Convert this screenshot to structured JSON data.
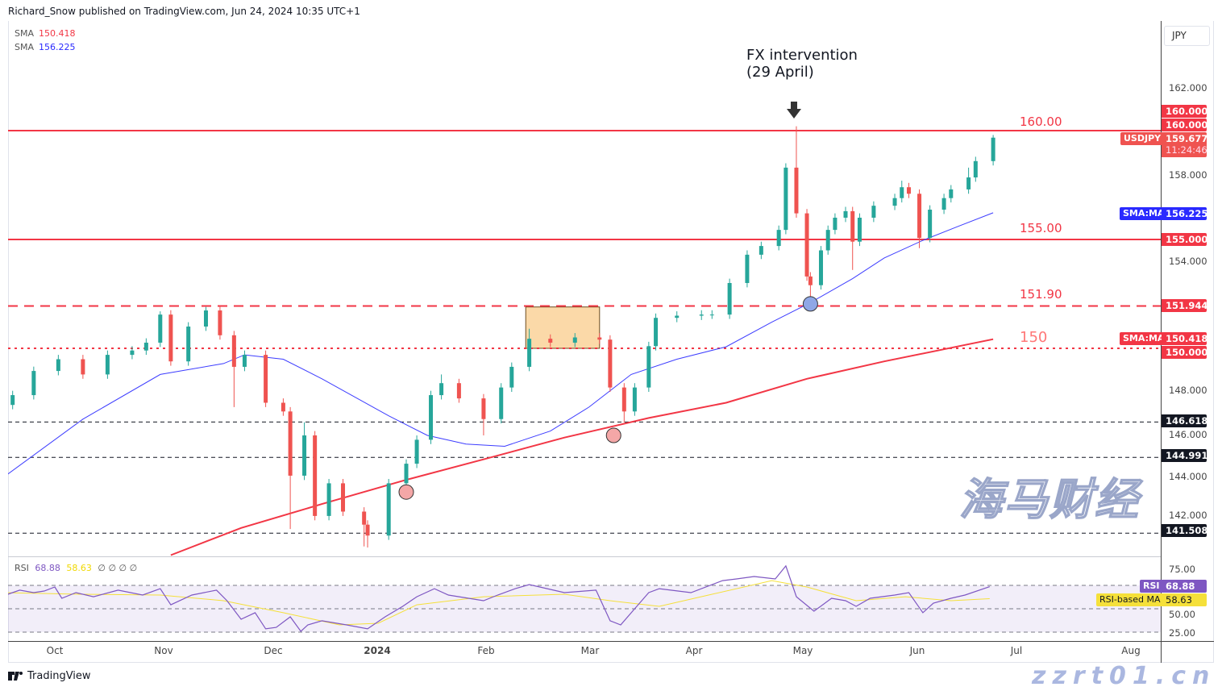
{
  "header": {
    "published": "Richard_Snow published on TradingView.com, Jun 24, 2024 10:35 UTC+1"
  },
  "legend": {
    "sma_long": {
      "label": "SMA",
      "value": "150.418",
      "color": "#f23645"
    },
    "sma_short": {
      "label": "SMA",
      "value": "156.225",
      "color": "#2a2aff"
    }
  },
  "currency_button": "JPY",
  "annotation": {
    "line1": "FX intervention",
    "line2": "(29 April)",
    "icon": "arrow-down-icon"
  },
  "levels": [
    {
      "value": 160.0,
      "style": "solid",
      "color": "#f23645",
      "label": "160.00"
    },
    {
      "value": 155.0,
      "style": "solid",
      "color": "#f23645",
      "label": "155.00"
    },
    {
      "value": 151.944,
      "style": "dashed",
      "color": "#f23645",
      "label": "151.90"
    },
    {
      "value": 150.0,
      "style": "dotted",
      "color": "#f23645",
      "label": "150"
    },
    {
      "value": 146.618,
      "style": "dashed",
      "color": "#131722",
      "label": ""
    },
    {
      "value": 144.991,
      "style": "dashed",
      "color": "#131722",
      "label": ""
    },
    {
      "value": 141.508,
      "style": "dashed",
      "color": "#131722",
      "label": ""
    }
  ],
  "price_tags": {
    "t160a": "160.000",
    "t160b": "160.000",
    "symbol": "USDJPY",
    "last": "159.677",
    "countdown": "11:24:46",
    "sma_short_label": "SMA:MA",
    "sma_short": "156.225",
    "t155": "155.000",
    "t151": "151.944",
    "sma_long_label": "SMA:MA",
    "sma_long": "150.418",
    "t150": "150.000",
    "t146": "146.618",
    "t144": "144.991",
    "t141": "141.508"
  },
  "colors": {
    "up": "#26a69a",
    "down": "#ef5350",
    "sma_short": "#3d3dff",
    "sma_long": "#f23645",
    "rsi": "#7e57c2",
    "rsi_ma": "#f5e03a",
    "box": "#fbd9a8"
  },
  "rsi": {
    "label": "RSI",
    "value": "68.88",
    "ma_value": "58.63",
    "extra": "∅ ∅ ∅ ∅",
    "tag_label": "RSI",
    "ma_tag_label": "RSI-based MA",
    "ticks": [
      "75.00",
      "50.00",
      "25.00"
    ],
    "bands": {
      "upper": 70,
      "middle": 50,
      "lower": 30
    }
  },
  "chart_data": {
    "type": "candlestick",
    "title": "",
    "symbol": "USDJPY",
    "ylim": [
      140.5,
      162.8
    ],
    "y_ticks": [
      "162.000",
      "158.000",
      "154.000",
      "148.000",
      "146.000",
      "144.000",
      "142.000"
    ],
    "x_ticks": [
      "Oct",
      "Nov",
      "Dec",
      "2024",
      "Feb",
      "Mar",
      "Apr",
      "May",
      "Jun",
      "Jul",
      "Aug"
    ],
    "first_open": 147.4,
    "candles": [
      {
        "d": "2023-09-19",
        "c": 147.85
      },
      {
        "d": "2023-09-25",
        "c": 148.96
      },
      {
        "d": "2023-10-02",
        "c": 149.5
      },
      {
        "d": "2023-10-09",
        "c": 148.8
      },
      {
        "d": "2023-10-16",
        "c": 149.7
      },
      {
        "d": "2023-10-23",
        "c": 149.9
      },
      {
        "d": "2023-10-27",
        "c": 150.26
      },
      {
        "d": "2023-10-31",
        "c": 151.55,
        "h": 151.7
      },
      {
        "d": "2023-11-03",
        "c": 149.4,
        "l": 149.2
      },
      {
        "d": "2023-11-08",
        "c": 151.0
      },
      {
        "d": "2023-11-13",
        "c": 151.74,
        "h": 151.9
      },
      {
        "d": "2023-11-17",
        "c": 150.6
      },
      {
        "d": "2023-11-21",
        "c": 149.15,
        "l": 147.3
      },
      {
        "d": "2023-11-24",
        "c": 149.7
      },
      {
        "d": "2023-11-30",
        "c": 147.5
      },
      {
        "d": "2023-12-05",
        "c": 147.1
      },
      {
        "d": "2023-12-07",
        "c": 144.15,
        "l": 141.7
      },
      {
        "d": "2023-12-11",
        "c": 146.0,
        "h": 146.6
      },
      {
        "d": "2023-12-14",
        "c": 142.3
      },
      {
        "d": "2023-12-18",
        "c": 143.8
      },
      {
        "d": "2023-12-22",
        "c": 142.5
      },
      {
        "d": "2023-12-28",
        "c": 141.9,
        "l": 140.9
      },
      {
        "d": "2023-12-29",
        "c": 141.4,
        "l": 140.85
      },
      {
        "d": "2024-01-04",
        "c": 143.8
      },
      {
        "d": "2024-01-09",
        "c": 144.7
      },
      {
        "d": "2024-01-12",
        "c": 145.8
      },
      {
        "d": "2024-01-16",
        "c": 147.85
      },
      {
        "d": "2024-01-19",
        "c": 148.4,
        "h": 148.8
      },
      {
        "d": "2024-01-24",
        "c": 147.7
      },
      {
        "d": "2024-01-31",
        "c": 146.75,
        "l": 146.0
      },
      {
        "d": "2024-02-05",
        "c": 148.2
      },
      {
        "d": "2024-02-08",
        "c": 149.15
      },
      {
        "d": "2024-02-13",
        "c": 150.44,
        "h": 150.9
      },
      {
        "d": "2024-02-19",
        "c": 150.26
      },
      {
        "d": "2024-02-26",
        "c": 150.5
      },
      {
        "d": "2024-03-04",
        "c": 150.4
      },
      {
        "d": "2024-03-07",
        "c": 148.2
      },
      {
        "d": "2024-03-11",
        "c": 147.1,
        "l": 146.6
      },
      {
        "d": "2024-03-14",
        "c": 148.2
      },
      {
        "d": "2024-03-18",
        "c": 150.1
      },
      {
        "d": "2024-03-20",
        "c": 151.4
      },
      {
        "d": "2024-03-26",
        "c": 151.5
      },
      {
        "d": "2024-04-02",
        "c": 151.55
      },
      {
        "d": "2024-04-05",
        "c": 151.55
      },
      {
        "d": "2024-04-10",
        "c": 153.0
      },
      {
        "d": "2024-04-15",
        "c": 154.3
      },
      {
        "d": "2024-04-19",
        "c": 154.7
      },
      {
        "d": "2024-04-24",
        "c": 155.44
      },
      {
        "d": "2024-04-26",
        "c": 158.3
      },
      {
        "d": "2024-04-29",
        "c": 156.2,
        "h": 160.2
      },
      {
        "d": "2024-05-02",
        "c": 153.3
      },
      {
        "d": "2024-05-03",
        "c": 152.9,
        "l": 152.1
      },
      {
        "d": "2024-05-06",
        "c": 154.5
      },
      {
        "d": "2024-05-08",
        "c": 155.44
      },
      {
        "d": "2024-05-10",
        "c": 156.0
      },
      {
        "d": "2024-05-13",
        "c": 156.3
      },
      {
        "d": "2024-05-15",
        "c": 154.9,
        "l": 153.6
      },
      {
        "d": "2024-05-17",
        "c": 156.0
      },
      {
        "d": "2024-05-21",
        "c": 156.55
      },
      {
        "d": "2024-05-27",
        "c": 156.9
      },
      {
        "d": "2024-05-29",
        "c": 157.4,
        "h": 157.7
      },
      {
        "d": "2024-05-31",
        "c": 157.1
      },
      {
        "d": "2024-06-03",
        "c": 155.07,
        "l": 154.6
      },
      {
        "d": "2024-06-06",
        "c": 156.37
      },
      {
        "d": "2024-06-10",
        "c": 156.9
      },
      {
        "d": "2024-06-12",
        "c": 157.3
      },
      {
        "d": "2024-06-17",
        "c": 157.85,
        "h": 158.3
      },
      {
        "d": "2024-06-19",
        "c": 158.6
      },
      {
        "d": "2024-06-24",
        "c": 159.677,
        "h": 159.8
      }
    ],
    "sma_short": [
      [
        "2023-09-17",
        144.15
      ],
      [
        "2023-10-09",
        146.75
      ],
      [
        "2023-10-31",
        148.8
      ],
      [
        "2023-11-18",
        149.3
      ],
      [
        "2023-11-24",
        149.7
      ],
      [
        "2023-12-05",
        149.5
      ],
      [
        "2023-12-16",
        148.6
      ],
      [
        "2024-01-04",
        146.9
      ],
      [
        "2024-01-15",
        146.0
      ],
      [
        "2024-01-26",
        145.6
      ],
      [
        "2024-02-06",
        145.5
      ],
      [
        "2024-02-19",
        146.2
      ],
      [
        "2024-03-01",
        147.3
      ],
      [
        "2024-03-13",
        148.8
      ],
      [
        "2024-03-26",
        149.5
      ],
      [
        "2024-04-09",
        150.07
      ],
      [
        "2024-04-22",
        151.2
      ],
      [
        "2024-05-03",
        152.1
      ],
      [
        "2024-05-15",
        153.2
      ],
      [
        "2024-05-24",
        154.15
      ],
      [
        "2024-06-04",
        154.96
      ],
      [
        "2024-06-14",
        155.6
      ],
      [
        "2024-06-24",
        156.225
      ]
    ],
    "sma_long": [
      [
        "2023-11-03",
        140.5
      ],
      [
        "2023-11-23",
        141.75
      ],
      [
        "2023-12-16",
        142.85
      ],
      [
        "2024-01-09",
        143.96
      ],
      [
        "2024-01-31",
        144.9
      ],
      [
        "2024-02-23",
        145.9
      ],
      [
        "2024-03-18",
        146.8
      ],
      [
        "2024-04-09",
        147.5
      ],
      [
        "2024-05-02",
        148.6
      ],
      [
        "2024-05-24",
        149.4
      ],
      [
        "2024-06-24",
        150.418
      ]
    ],
    "consolidation_box": {
      "from": "2024-02-12",
      "to": "2024-03-04",
      "top": 151.9,
      "bottom": 150.0
    },
    "markers": [
      {
        "d": "2024-01-09",
        "v": 143.4,
        "color": "#f4a7a7"
      },
      {
        "d": "2024-03-08",
        "v": 146.0,
        "color": "#f4a7a7"
      },
      {
        "d": "2024-05-03",
        "v": 152.04,
        "color": "#8fa7e6"
      }
    ],
    "rsi_series": [
      [
        "2023-09-17",
        61.7
      ],
      [
        "2023-09-21",
        65.9
      ],
      [
        "2023-09-25",
        63.8
      ],
      [
        "2023-09-28",
        65.2
      ],
      [
        "2023-10-01",
        68.6
      ],
      [
        "2023-10-03",
        59
      ],
      [
        "2023-10-07",
        63.8
      ],
      [
        "2023-10-12",
        60.3
      ],
      [
        "2023-10-19",
        65.9
      ],
      [
        "2023-10-26",
        61.7
      ],
      [
        "2023-10-31",
        67.2
      ],
      [
        "2023-11-03",
        53.4
      ],
      [
        "2023-11-09",
        61.7
      ],
      [
        "2023-11-16",
        65.9
      ],
      [
        "2023-11-19",
        56.9
      ],
      [
        "2023-11-23",
        41
      ],
      [
        "2023-11-27",
        46.6
      ],
      [
        "2023-11-30",
        32.8
      ],
      [
        "2023-12-03",
        34.1
      ],
      [
        "2023-12-07",
        43.1
      ],
      [
        "2023-12-10",
        30.7
      ],
      [
        "2023-12-12",
        36.2
      ],
      [
        "2023-12-16",
        39.7
      ],
      [
        "2023-12-23",
        36.2
      ],
      [
        "2023-12-29",
        32.8
      ],
      [
        "2024-01-03",
        43.1
      ],
      [
        "2024-01-08",
        52.1
      ],
      [
        "2024-01-12",
        60.3
      ],
      [
        "2024-01-17",
        67.2
      ],
      [
        "2024-01-21",
        61.7
      ],
      [
        "2024-01-31",
        56.9
      ],
      [
        "2024-02-04",
        61.7
      ],
      [
        "2024-02-09",
        67.2
      ],
      [
        "2024-02-13",
        70.7
      ],
      [
        "2024-02-23",
        63.8
      ],
      [
        "2024-03-03",
        65.9
      ],
      [
        "2024-03-07",
        39.7
      ],
      [
        "2024-03-10",
        36.2
      ],
      [
        "2024-03-14",
        50
      ],
      [
        "2024-03-18",
        63.8
      ],
      [
        "2024-03-21",
        67.2
      ],
      [
        "2024-03-30",
        63.8
      ],
      [
        "2024-04-08",
        74.1
      ],
      [
        "2024-04-12",
        75.5
      ],
      [
        "2024-04-17",
        77.6
      ],
      [
        "2024-04-23",
        75.5
      ],
      [
        "2024-04-26",
        86.6
      ],
      [
        "2024-04-29",
        60.3
      ],
      [
        "2024-05-04",
        47.9
      ],
      [
        "2024-05-09",
        59
      ],
      [
        "2024-05-13",
        56.9
      ],
      [
        "2024-05-16",
        52.1
      ],
      [
        "2024-05-20",
        59
      ],
      [
        "2024-05-27",
        61.7
      ],
      [
        "2024-05-31",
        63.8
      ],
      [
        "2024-06-04",
        46.6
      ],
      [
        "2024-06-07",
        54.8
      ],
      [
        "2024-06-12",
        59
      ],
      [
        "2024-06-16",
        61.7
      ],
      [
        "2024-06-23",
        68.88
      ]
    ],
    "rsi_ma_series": [
      [
        "2023-09-17",
        63.8
      ],
      [
        "2023-10-08",
        62.4
      ],
      [
        "2023-10-31",
        61.7
      ],
      [
        "2023-11-18",
        56.9
      ],
      [
        "2023-12-05",
        46.6
      ],
      [
        "2023-12-21",
        36.2
      ],
      [
        "2024-01-01",
        37.6
      ],
      [
        "2024-01-12",
        53.4
      ],
      [
        "2024-01-31",
        60.3
      ],
      [
        "2024-02-23",
        62.4
      ],
      [
        "2024-03-07",
        56.9
      ],
      [
        "2024-03-21",
        52.1
      ],
      [
        "2024-04-04",
        61.7
      ],
      [
        "2024-04-22",
        74.1
      ],
      [
        "2024-05-02",
        68.6
      ],
      [
        "2024-05-16",
        56.9
      ],
      [
        "2024-05-30",
        60.3
      ],
      [
        "2024-06-12",
        56.9
      ],
      [
        "2024-06-23",
        58.63
      ]
    ]
  },
  "footer": {
    "brand": "TradingView"
  },
  "watermark": {
    "line1": "海马财经",
    "line2": "zzrt01.cn"
  }
}
